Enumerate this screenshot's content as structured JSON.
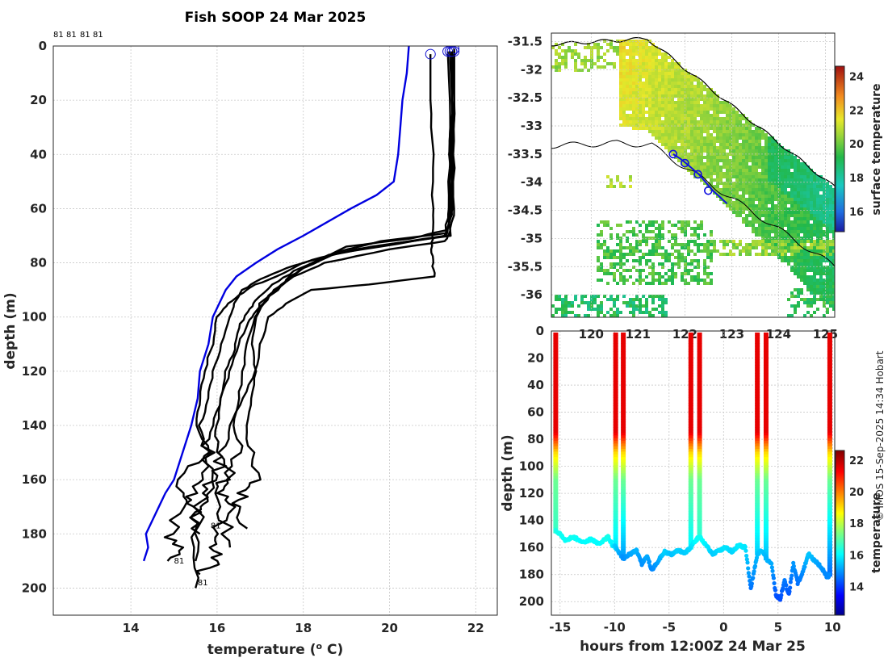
{
  "title": "Fish SOOP 24 Mar 2025",
  "credit": "© IMOS 15-Sep-2025 14:34 Hobart",
  "top_labels": [
    "81",
    "81",
    "81",
    "81"
  ],
  "drop_label": "81",
  "colors": {
    "reference_profile": "#0000e0",
    "profiles": "#000000",
    "grid": "#c8c8c8"
  },
  "chart_data": [
    {
      "id": "profiles",
      "type": "line",
      "xlabel": "temperature (o C)",
      "xlabel_main": "temperature (",
      "xlabel_sup": "o",
      "xlabel_end": " C)",
      "ylabel": "depth (m)",
      "xlim": [
        12.2,
        22.5
      ],
      "ylim": [
        210,
        0
      ],
      "xticks": [
        "14",
        "16",
        "18",
        "20",
        "22"
      ],
      "yticks": [
        "0",
        "20",
        "40",
        "60",
        "80",
        "100",
        "120",
        "140",
        "160",
        "180",
        "200"
      ],
      "reference": {
        "name": "climatology",
        "temp": [
          20.45,
          20.4,
          20.3,
          20.25,
          20.2,
          20.1,
          19.7,
          19.1,
          18.0,
          17.4,
          16.9,
          16.45,
          16.2,
          15.9,
          15.8,
          15.6,
          15.55,
          15.4,
          15.2,
          15.0,
          14.8,
          14.65,
          14.5,
          14.35,
          14.4,
          14.3
        ],
        "depth": [
          0,
          10,
          20,
          30,
          40,
          50,
          55,
          60,
          70,
          75,
          80,
          85,
          90,
          100,
          110,
          120,
          130,
          140,
          150,
          160,
          165,
          170,
          175,
          180,
          185,
          190
        ]
      },
      "casts": [
        {
          "temp": [
            20.95,
            20.95,
            21.0,
            21.0,
            21.0,
            20.98,
            21.0,
            21.05,
            19.5,
            18.2,
            17.6,
            17.2,
            17.0,
            16.9,
            16.6,
            16.3,
            16.2,
            16.4,
            16.1,
            16.3,
            16.0,
            15.9,
            16.0,
            15.6
          ],
          "depth": [
            3,
            20,
            40,
            60,
            70,
            75,
            80,
            85,
            88,
            90,
            95,
            100,
            110,
            120,
            130,
            140,
            150,
            160,
            165,
            170,
            180,
            185,
            190,
            195
          ]
        },
        {
          "temp": [
            21.35,
            21.4,
            21.4,
            21.35,
            21.4,
            21.3,
            20.0,
            18.5,
            17.8,
            17.3,
            17.1,
            16.9,
            16.8,
            16.9,
            16.8,
            16.7,
            16.7,
            16.9,
            16.6,
            16.5,
            16.7
          ],
          "depth": [
            2,
            20,
            40,
            60,
            68,
            72,
            75,
            80,
            85,
            90,
            95,
            100,
            110,
            120,
            130,
            140,
            150,
            160,
            165,
            170,
            178
          ]
        },
        {
          "temp": [
            21.5,
            21.5,
            21.45,
            21.5,
            21.4,
            19.6,
            18.4,
            17.6,
            17.0,
            16.6,
            16.4,
            16.3,
            16.1,
            15.9,
            15.8,
            15.6,
            15.8,
            15.5,
            15.4,
            15.2,
            14.9,
            15.1,
            14.85
          ],
          "depth": [
            2,
            20,
            40,
            60,
            70,
            74,
            78,
            82,
            86,
            90,
            95,
            100,
            110,
            120,
            130,
            140,
            150,
            160,
            165,
            170,
            180,
            185,
            190
          ]
        },
        {
          "temp": [
            21.45,
            21.45,
            21.4,
            21.45,
            21.3,
            19.2,
            18.0,
            17.4,
            16.9,
            16.5,
            16.2,
            16.0,
            15.9,
            15.7,
            15.6,
            15.5,
            15.8,
            15.4,
            15.1,
            15.6,
            15.3,
            15.5
          ],
          "depth": [
            2,
            20,
            40,
            60,
            70,
            75,
            80,
            85,
            88,
            92,
            96,
            100,
            110,
            120,
            130,
            140,
            150,
            155,
            165,
            170,
            185,
            200
          ]
        },
        {
          "temp": [
            21.4,
            21.45,
            21.4,
            21.4,
            21.3,
            20.5,
            19.0,
            18.2,
            17.7,
            17.4,
            17.0,
            16.9,
            16.7,
            16.6,
            16.5,
            16.4,
            16.5,
            16.2,
            16.0,
            16.2,
            16.3
          ],
          "depth": [
            2,
            20,
            40,
            60,
            68,
            71,
            74,
            80,
            85,
            90,
            95,
            100,
            110,
            120,
            130,
            140,
            150,
            160,
            165,
            175,
            185
          ]
        },
        {
          "temp": [
            21.5,
            21.5,
            21.45,
            21.45,
            21.35,
            19.8,
            18.8,
            18.0,
            17.5,
            17.2,
            16.9,
            16.7,
            16.5,
            16.3,
            16.1,
            15.9,
            15.7,
            16.0,
            15.7,
            15.4,
            15.6
          ],
          "depth": [
            1,
            20,
            40,
            60,
            69,
            72,
            76,
            82,
            88,
            92,
            98,
            102,
            110,
            120,
            130,
            140,
            150,
            158,
            168,
            172,
            180
          ]
        },
        {
          "temp": [
            21.45,
            21.5,
            21.5,
            21.45,
            21.3,
            20.2,
            18.6,
            17.8,
            17.3,
            16.9,
            16.7,
            16.5,
            16.4,
            16.2,
            16.1,
            16.0,
            15.9,
            16.1,
            15.8,
            15.6,
            15.4,
            15.5
          ],
          "depth": [
            2,
            20,
            40,
            60,
            70,
            73,
            77,
            83,
            88,
            94,
            98,
            104,
            112,
            120,
            130,
            140,
            148,
            155,
            162,
            168,
            176,
            190
          ]
        }
      ]
    },
    {
      "id": "sst_map",
      "type": "heatmap",
      "title": "surface temperature",
      "xlim": [
        119.15,
        125.2
      ],
      "ylim": [
        -36.4,
        -31.35
      ],
      "xticks": [
        "120",
        "121",
        "122",
        "123",
        "124",
        "125"
      ],
      "yticks": [
        "-31.5",
        "-32",
        "-32.5",
        "-33",
        "-33.5",
        "-34",
        "-34.5",
        "-35",
        "-35.5",
        "-36"
      ],
      "colorbar_ticks": [
        "16",
        "18",
        "20",
        "22",
        "24"
      ],
      "colorbar_range": [
        14.8,
        24.6
      ],
      "track": {
        "lon": [
          121.75,
          121.9,
          122.05,
          122.3,
          122.6,
          122.9
        ],
        "lat": [
          -33.5,
          -33.58,
          -33.68,
          -33.86,
          -34.15,
          -34.38
        ]
      },
      "casts": {
        "lon": [
          121.75,
          122.0,
          122.28,
          122.5
        ],
        "lat": [
          -33.5,
          -33.66,
          -33.86,
          -34.15
        ]
      }
    },
    {
      "id": "section",
      "type": "scatter",
      "xlabel": "hours from 12:00Z 24 Mar 25",
      "ylabel": "depth (m)",
      "clabel": "temperature",
      "xlim": [
        -15.8,
        10.2
      ],
      "ylim": [
        210,
        0
      ],
      "xticks": [
        "-15",
        "-10",
        "-5",
        "0",
        "5",
        "10"
      ],
      "yticks": [
        "0",
        "20",
        "40",
        "60",
        "80",
        "100",
        "120",
        "140",
        "160",
        "180",
        "200"
      ],
      "colorbar_ticks": [
        "14",
        "16",
        "18",
        "20",
        "22"
      ],
      "colorbar_range": [
        12.2,
        22.6
      ],
      "cast_times": [
        -15.4,
        -9.9,
        -9.2,
        -3.0,
        -2.2,
        3.1,
        3.9,
        9.75
      ],
      "bottom_path": {
        "hours": [
          -15.4,
          -15.0,
          -14.5,
          -13.8,
          -13.0,
          -12.2,
          -11.4,
          -10.6,
          -10.2,
          -9.9,
          -9.2,
          -8.6,
          -8.0,
          -7.5,
          -7.0,
          -6.6,
          -6.0,
          -5.4,
          -4.8,
          -4.2,
          -3.6,
          -3.0,
          -2.6,
          -2.2,
          -1.6,
          -1.0,
          -0.4,
          0.2,
          0.8,
          1.4,
          2.0,
          2.5,
          3.1,
          3.5,
          3.9,
          4.4,
          4.8,
          5.2,
          5.6,
          6.0,
          6.4,
          6.8,
          7.2,
          7.8,
          8.4,
          9.0,
          9.5,
          9.75
        ],
        "depth": [
          148,
          150,
          155,
          152,
          156,
          154,
          157,
          152,
          158,
          160,
          168,
          165,
          162,
          172,
          166,
          177,
          170,
          163,
          165,
          162,
          164,
          160,
          155,
          152,
          158,
          165,
          162,
          160,
          163,
          158,
          160,
          190,
          165,
          162,
          168,
          172,
          195,
          198,
          185,
          195,
          172,
          186,
          180,
          165,
          170,
          175,
          182,
          180
        ],
        "temp": [
          16.3,
          16.2,
          16.1,
          16.2,
          16.0,
          16.1,
          16.0,
          16.3,
          15.9,
          15.5,
          14.9,
          15.1,
          15.3,
          14.9,
          15.2,
          14.8,
          15.1,
          15.6,
          15.4,
          15.6,
          15.5,
          15.7,
          16.0,
          16.2,
          15.9,
          15.5,
          15.7,
          15.8,
          15.6,
          15.9,
          15.8,
          14.6,
          15.4,
          15.5,
          15.3,
          15.2,
          14.3,
          14.2,
          14.7,
          14.3,
          15.0,
          14.6,
          14.8,
          15.5,
          15.2,
          15.0,
          14.8,
          14.9
        ]
      }
    }
  ]
}
